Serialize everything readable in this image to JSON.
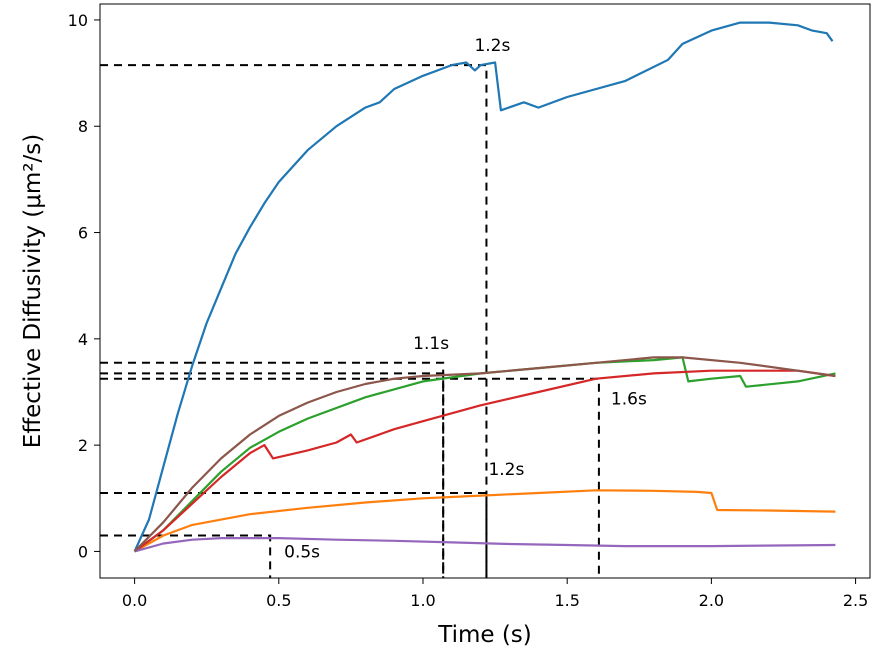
{
  "chart_data": {
    "type": "line",
    "title": "",
    "xlabel": "Time (s)",
    "ylabel": "Effective Diffusivity (μm²/s)",
    "xlim": [
      -0.12,
      2.55
    ],
    "ylim": [
      -0.5,
      10.3
    ],
    "xticks": [
      0.0,
      0.5,
      1.0,
      1.5,
      2.0,
      2.5
    ],
    "xtick_labels": [
      "0.0",
      "0.5",
      "1.0",
      "1.5",
      "2.0",
      "2.5"
    ],
    "yticks": [
      0,
      2,
      4,
      6,
      8,
      10
    ],
    "ytick_labels": [
      "0",
      "2",
      "4",
      "6",
      "8",
      "10"
    ],
    "grid": false,
    "series": [
      {
        "name": "blue",
        "color": "#1f77b4",
        "points": [
          [
            0,
            0
          ],
          [
            0.05,
            0.6
          ],
          [
            0.1,
            1.6
          ],
          [
            0.15,
            2.6
          ],
          [
            0.2,
            3.5
          ],
          [
            0.25,
            4.3
          ],
          [
            0.3,
            4.95
          ],
          [
            0.35,
            5.6
          ],
          [
            0.4,
            6.1
          ],
          [
            0.45,
            6.55
          ],
          [
            0.5,
            6.95
          ],
          [
            0.6,
            7.55
          ],
          [
            0.7,
            8.0
          ],
          [
            0.8,
            8.35
          ],
          [
            0.85,
            8.45
          ],
          [
            0.9,
            8.7
          ],
          [
            1.0,
            8.95
          ],
          [
            1.1,
            9.15
          ],
          [
            1.15,
            9.2
          ],
          [
            1.18,
            9.05
          ],
          [
            1.2,
            9.15
          ],
          [
            1.25,
            9.2
          ],
          [
            1.27,
            8.3
          ],
          [
            1.35,
            8.45
          ],
          [
            1.4,
            8.35
          ],
          [
            1.5,
            8.55
          ],
          [
            1.7,
            8.85
          ],
          [
            1.85,
            9.25
          ],
          [
            1.9,
            9.55
          ],
          [
            2.0,
            9.8
          ],
          [
            2.1,
            9.95
          ],
          [
            2.2,
            9.95
          ],
          [
            2.3,
            9.9
          ],
          [
            2.35,
            9.8
          ],
          [
            2.4,
            9.75
          ],
          [
            2.42,
            9.6
          ]
        ]
      },
      {
        "name": "orange",
        "color": "#ff7f0e",
        "points": [
          [
            0,
            0
          ],
          [
            0.1,
            0.3
          ],
          [
            0.2,
            0.5
          ],
          [
            0.4,
            0.7
          ],
          [
            0.6,
            0.82
          ],
          [
            0.8,
            0.92
          ],
          [
            1.0,
            1.0
          ],
          [
            1.2,
            1.05
          ],
          [
            1.4,
            1.1
          ],
          [
            1.6,
            1.15
          ],
          [
            1.8,
            1.14
          ],
          [
            1.95,
            1.12
          ],
          [
            2.0,
            1.1
          ],
          [
            2.02,
            0.78
          ],
          [
            2.2,
            0.77
          ],
          [
            2.43,
            0.75
          ]
        ]
      },
      {
        "name": "green",
        "color": "#2ca02c",
        "points": [
          [
            0,
            0
          ],
          [
            0.1,
            0.4
          ],
          [
            0.2,
            0.95
          ],
          [
            0.3,
            1.5
          ],
          [
            0.4,
            1.95
          ],
          [
            0.5,
            2.25
          ],
          [
            0.6,
            2.5
          ],
          [
            0.8,
            2.9
          ],
          [
            1.0,
            3.2
          ],
          [
            1.2,
            3.35
          ],
          [
            1.4,
            3.45
          ],
          [
            1.6,
            3.55
          ],
          [
            1.8,
            3.6
          ],
          [
            1.9,
            3.65
          ],
          [
            1.92,
            3.2
          ],
          [
            2.0,
            3.25
          ],
          [
            2.1,
            3.3
          ],
          [
            2.12,
            3.1
          ],
          [
            2.3,
            3.2
          ],
          [
            2.43,
            3.35
          ]
        ]
      },
      {
        "name": "red",
        "color": "#d62728",
        "points": [
          [
            0,
            0
          ],
          [
            0.1,
            0.4
          ],
          [
            0.2,
            0.9
          ],
          [
            0.3,
            1.4
          ],
          [
            0.4,
            1.85
          ],
          [
            0.45,
            2.0
          ],
          [
            0.48,
            1.75
          ],
          [
            0.6,
            1.9
          ],
          [
            0.7,
            2.05
          ],
          [
            0.75,
            2.2
          ],
          [
            0.77,
            2.05
          ],
          [
            0.9,
            2.3
          ],
          [
            1.0,
            2.45
          ],
          [
            1.2,
            2.75
          ],
          [
            1.4,
            3.0
          ],
          [
            1.6,
            3.25
          ],
          [
            1.8,
            3.35
          ],
          [
            2.0,
            3.4
          ],
          [
            2.3,
            3.4
          ],
          [
            2.43,
            3.3
          ]
        ]
      },
      {
        "name": "purple",
        "color": "#9467bd",
        "points": [
          [
            0,
            0
          ],
          [
            0.1,
            0.15
          ],
          [
            0.2,
            0.22
          ],
          [
            0.3,
            0.25
          ],
          [
            0.5,
            0.25
          ],
          [
            0.7,
            0.22
          ],
          [
            0.9,
            0.2
          ],
          [
            1.1,
            0.17
          ],
          [
            1.3,
            0.14
          ],
          [
            1.5,
            0.12
          ],
          [
            1.7,
            0.1
          ],
          [
            2.0,
            0.1
          ],
          [
            2.43,
            0.12
          ]
        ]
      },
      {
        "name": "brown",
        "color": "#8c564b",
        "points": [
          [
            0,
            0
          ],
          [
            0.1,
            0.55
          ],
          [
            0.2,
            1.2
          ],
          [
            0.3,
            1.75
          ],
          [
            0.4,
            2.2
          ],
          [
            0.5,
            2.55
          ],
          [
            0.6,
            2.8
          ],
          [
            0.7,
            3.0
          ],
          [
            0.8,
            3.15
          ],
          [
            0.9,
            3.25
          ],
          [
            1.0,
            3.3
          ],
          [
            1.2,
            3.35
          ],
          [
            1.4,
            3.45
          ],
          [
            1.6,
            3.55
          ],
          [
            1.8,
            3.65
          ],
          [
            1.9,
            3.65
          ],
          [
            2.1,
            3.55
          ],
          [
            2.3,
            3.4
          ],
          [
            2.43,
            3.3
          ]
        ]
      }
    ],
    "reference_lines": [
      {
        "color": "#000000",
        "x": 1.22,
        "y": 9.15
      },
      {
        "color": "#000000",
        "x": 1.22,
        "y": 1.1
      },
      {
        "color": "#000000",
        "x": 1.07,
        "y": 3.55
      },
      {
        "color": "#000000",
        "x": 1.61,
        "y": 3.25
      },
      {
        "color": "#000000",
        "x": 0.47,
        "y": 0.3
      },
      {
        "color": "#000000",
        "x": 1.07,
        "y": 3.35
      }
    ],
    "annotations": [
      {
        "text": "1.2s",
        "x": 1.22,
        "y": 9.15
      },
      {
        "text": "1.1s",
        "x": 1.07,
        "y": 3.55
      },
      {
        "text": "1.6s",
        "x": 1.61,
        "y": 3.25
      },
      {
        "text": "1.2s",
        "x": 1.22,
        "y": 1.1
      },
      {
        "text": "0.5s",
        "x": 0.47,
        "y": 0.3
      }
    ]
  }
}
